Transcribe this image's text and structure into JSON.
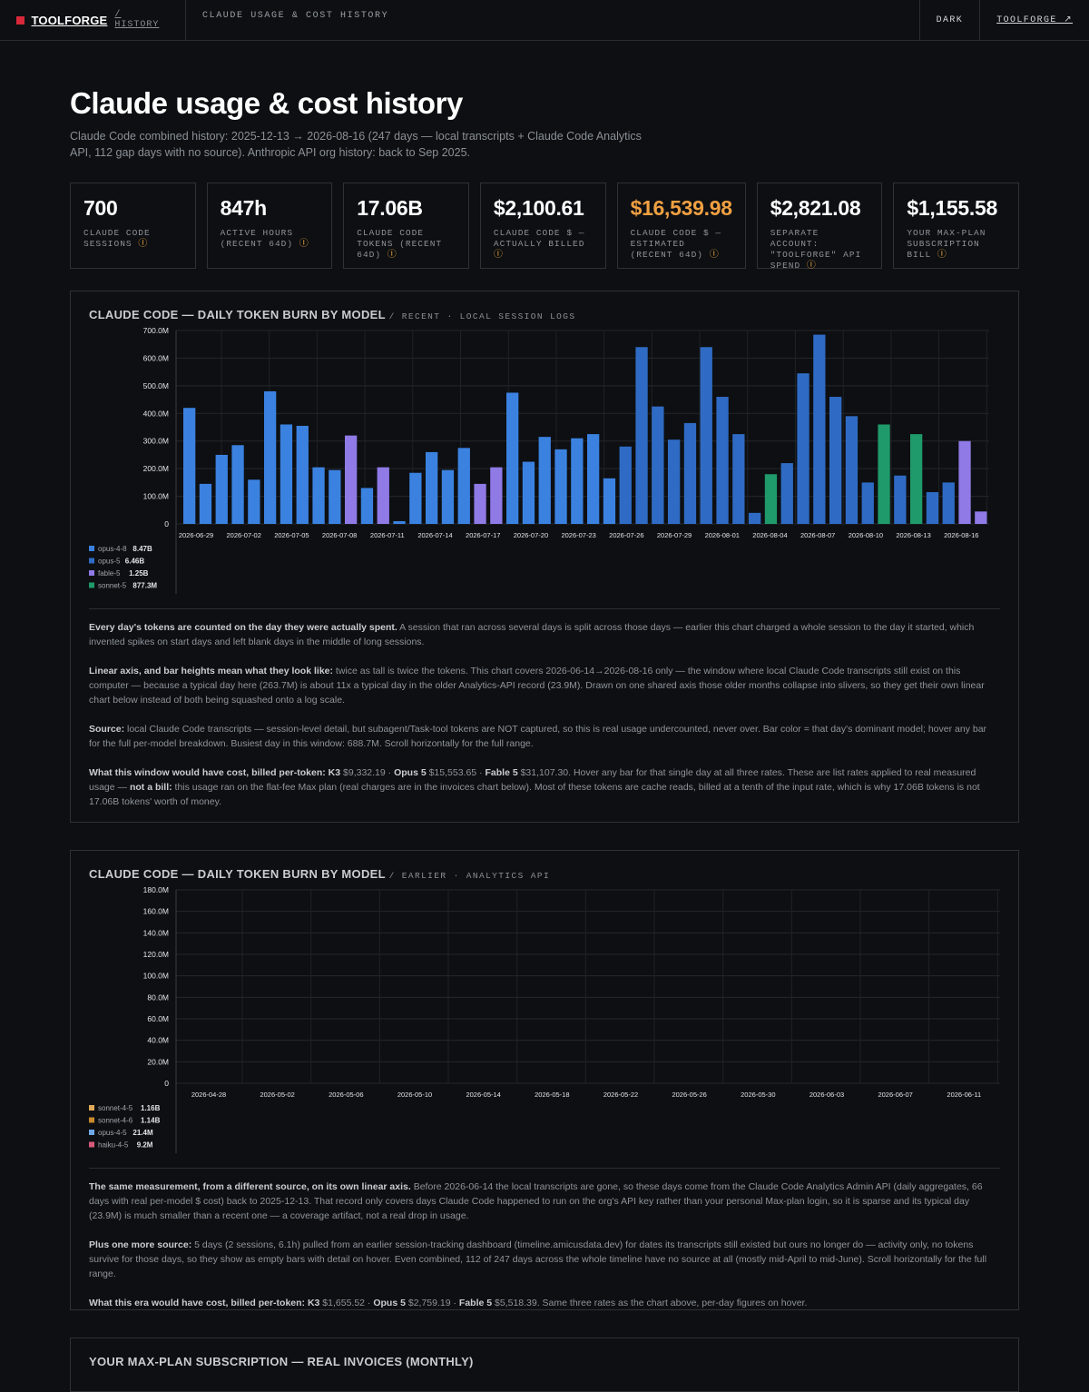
{
  "topbar": {
    "brand": "TOOLFORGE",
    "crumb": "/ HISTORY",
    "title": "CLAUDE USAGE & COST HISTORY",
    "theme_btn": "DARK",
    "link": "TOOLFORGE ↗"
  },
  "header": {
    "title": "Claude usage & cost history",
    "subtitle": "Claude Code combined history: 2025-12-13 → 2026-08-16 (247 days — local transcripts + Claude Code Analytics API, 112 gap days with no source). Anthropic API org history: back to Sep 2025."
  },
  "stats": [
    {
      "value": "700",
      "label": "CLAUDE CODE SESSIONS",
      "info": "ⓘ"
    },
    {
      "value": "847h",
      "label": "ACTIVE HOURS (RECENT 64D)",
      "info": "ⓘ"
    },
    {
      "value": "17.06B",
      "label": "CLAUDE CODE TOKENS (RECENT 64D)",
      "info": "ⓘ"
    },
    {
      "value": "$2,100.61",
      "label": "CLAUDE CODE $ — ACTUALLY BILLED",
      "info": "ⓘ"
    },
    {
      "value": "$16,539.98",
      "label": "CLAUDE CODE $ — ESTIMATED (RECENT 64D)",
      "info": "ⓘ"
    },
    {
      "value": "$2,821.08",
      "label": "SEPARATE ACCOUNT: \"TOOLFORGE\" API SPEND",
      "info": "ⓘ"
    },
    {
      "value": "$1,155.58",
      "label": "YOUR MAX-PLAN SUBSCRIPTION BILL",
      "info": "ⓘ"
    }
  ],
  "panel1": {
    "title": "CLAUDE CODE — DAILY TOKEN BURN BY MODEL",
    "tag": "/ RECENT · LOCAL SESSION LOGS",
    "notes": [
      {
        "b": "Every day's tokens are counted on the day they were actually spent.",
        "t": " A session that ran across several days is split across those days — earlier this chart charged a whole session to the day it started, which invented spikes on start days and left blank days in the middle of long sessions."
      },
      {
        "b": "Linear axis, and bar heights mean what they look like:",
        "t": " twice as tall is twice the tokens. This chart covers 2026-06-14→2026-08-16 only — the window where local Claude Code transcripts still exist on this computer — because a typical day here (263.7M) is about 11x a typical day in the older Analytics-API record (23.9M). Drawn on one shared axis those older months collapse into slivers, so they get their own linear chart below instead of both being squashed onto a log scale."
      },
      {
        "b": "Source:",
        "t": " local Claude Code transcripts — session-level detail, but subagent/Task-tool tokens are NOT captured, so this is real usage undercounted, never over. Bar color = that day's dominant model; hover any bar for the full per-model breakdown. Busiest day in this window: 688.7M. Scroll horizontally for the full range."
      },
      {
        "b": "What this window would have cost, billed per-token: K3",
        "t": " $9,332.19 · ",
        "b2": "Opus 5",
        "t2": " $15,553.65 · ",
        "b3": "Fable 5",
        "t3": " $31,107.30. Hover any bar for that single day at all three rates. These are list rates applied to real measured usage — ",
        "b4": "not a bill:",
        "t4": " this usage ran on the flat-fee Max plan (real charges are in the invoices chart below). Most of these tokens are cache reads, billed at a tenth of the input rate, which is why 17.06B tokens is not 17.06B tokens' worth of money."
      }
    ]
  },
  "panel2": {
    "title": "CLAUDE CODE — DAILY TOKEN BURN BY MODEL",
    "tag": "/ EARLIER · ANALYTICS API",
    "notes": [
      {
        "b": "The same measurement, from a different source, on its own linear axis.",
        "t": " Before 2026-06-14 the local transcripts are gone, so these days come from the Claude Code Analytics Admin API (daily aggregates, 66 days with real per-model $ cost) back to 2025-12-13. That record only covers days Claude Code happened to run on the org's API key rather than your personal Max-plan login, so it is sparse and its typical day (23.9M) is much smaller than a recent one — a coverage artifact, not a real drop in usage."
      },
      {
        "b": "Plus one more source:",
        "t": " 5 days (2 sessions, 6.1h) pulled from an earlier session-tracking dashboard (timeline.amicusdata.dev) for dates its transcripts still existed but ours no longer do — activity only, no tokens survive for those days, so they show as empty bars with detail on hover. Even combined, 112 of 247 days across the whole timeline have no source at all (mostly mid-April to mid-June). Scroll horizontally for the full range."
      },
      {
        "b": "What this era would have cost, billed per-token: K3",
        "t": " $1,655.52 · ",
        "b2": "Opus 5",
        "t2": " $2,759.19 · ",
        "b3": "Fable 5",
        "t3": " $5,518.39. Same three rates as the chart above, per-day figures on hover."
      }
    ]
  },
  "panel3": {
    "title": "YOUR MAX-PLAN SUBSCRIPTION — REAL INVOICES (MONTHLY)"
  },
  "chart_data": [
    {
      "type": "bar",
      "y_ticks": [
        "0",
        "100.0M",
        "200.0M",
        "300.0M",
        "400.0M",
        "500.0M",
        "600.0M",
        "700.0M"
      ],
      "ylim": [
        0,
        700
      ],
      "x_tick_labels": [
        "2026-06-29",
        "2026-07-02",
        "2026-07-05",
        "2026-07-08",
        "2026-07-11",
        "2026-07-14",
        "2026-07-17",
        "2026-07-20",
        "2026-07-23",
        "2026-07-26",
        "2026-07-29",
        "2026-08-01",
        "2026-08-04",
        "2026-08-07",
        "2026-08-10",
        "2026-08-13",
        "2026-08-16"
      ],
      "values_m": [
        420,
        145,
        250,
        285,
        160,
        480,
        360,
        355,
        205,
        195,
        320,
        130,
        205,
        10,
        185,
        260,
        195,
        275,
        145,
        205,
        475,
        225,
        315,
        270,
        310,
        325,
        165,
        280,
        640,
        425,
        305,
        365,
        640,
        460,
        325,
        40,
        180,
        220,
        545,
        685,
        460,
        390,
        150,
        360,
        175,
        325,
        115,
        150,
        300,
        45
      ],
      "models": [
        "o48",
        "o48",
        "o48",
        "o48",
        "o48",
        "o48",
        "o48",
        "o48",
        "o48",
        "o48",
        "f5",
        "o48",
        "f5",
        "o48",
        "o48",
        "o48",
        "o48",
        "o48",
        "f5",
        "f5",
        "o48",
        "o48",
        "o48",
        "o48",
        "o48",
        "o48",
        "o48",
        "o5",
        "o5",
        "o5",
        "o5",
        "o5",
        "o5",
        "o5",
        "o5",
        "o5",
        "s5",
        "o5",
        "o5",
        "o5",
        "o5",
        "o5",
        "o5",
        "s5",
        "o5",
        "s5",
        "o5",
        "o5",
        "f5",
        "f5"
      ],
      "legend": [
        {
          "key": "o48",
          "name": "opus-4-8",
          "value": "8.47B",
          "color": "#3b82e0"
        },
        {
          "key": "o5",
          "name": "opus-5",
          "value": "6.46B",
          "color": "#2f6bc4"
        },
        {
          "key": "f5",
          "name": "fable-5",
          "value": "1.25B",
          "color": "#8f7ae6"
        },
        {
          "key": "s5",
          "name": "sonnet-5",
          "value": "877.3M",
          "color": "#1f9a6a"
        }
      ]
    },
    {
      "type": "bar",
      "y_ticks": [
        "0",
        "20.0M",
        "40.0M",
        "60.0M",
        "80.0M",
        "100.0M",
        "120.0M",
        "140.0M",
        "160.0M",
        "180.0M"
      ],
      "ylim": [
        0,
        180
      ],
      "x_tick_labels": [
        "2026-04-28",
        "2026-05-02",
        "2026-05-06",
        "2026-05-10",
        "2026-05-14",
        "2026-05-18",
        "2026-05-22",
        "2026-05-26",
        "2026-05-30",
        "2026-06-03",
        "2026-06-07",
        "2026-06-11"
      ],
      "values_m": [],
      "legend": [
        {
          "key": "s45",
          "name": "sonnet-4-5",
          "value": "1.16B",
          "color": "#e0a85a"
        },
        {
          "key": "s46",
          "name": "sonnet-4-6",
          "value": "1.14B",
          "color": "#c98a2e"
        },
        {
          "key": "o45",
          "name": "opus-4-5",
          "value": "21.4M",
          "color": "#6fa8e8"
        },
        {
          "key": "h45",
          "name": "haiku-4-5",
          "value": "9.2M",
          "color": "#d85a7a"
        }
      ]
    }
  ]
}
